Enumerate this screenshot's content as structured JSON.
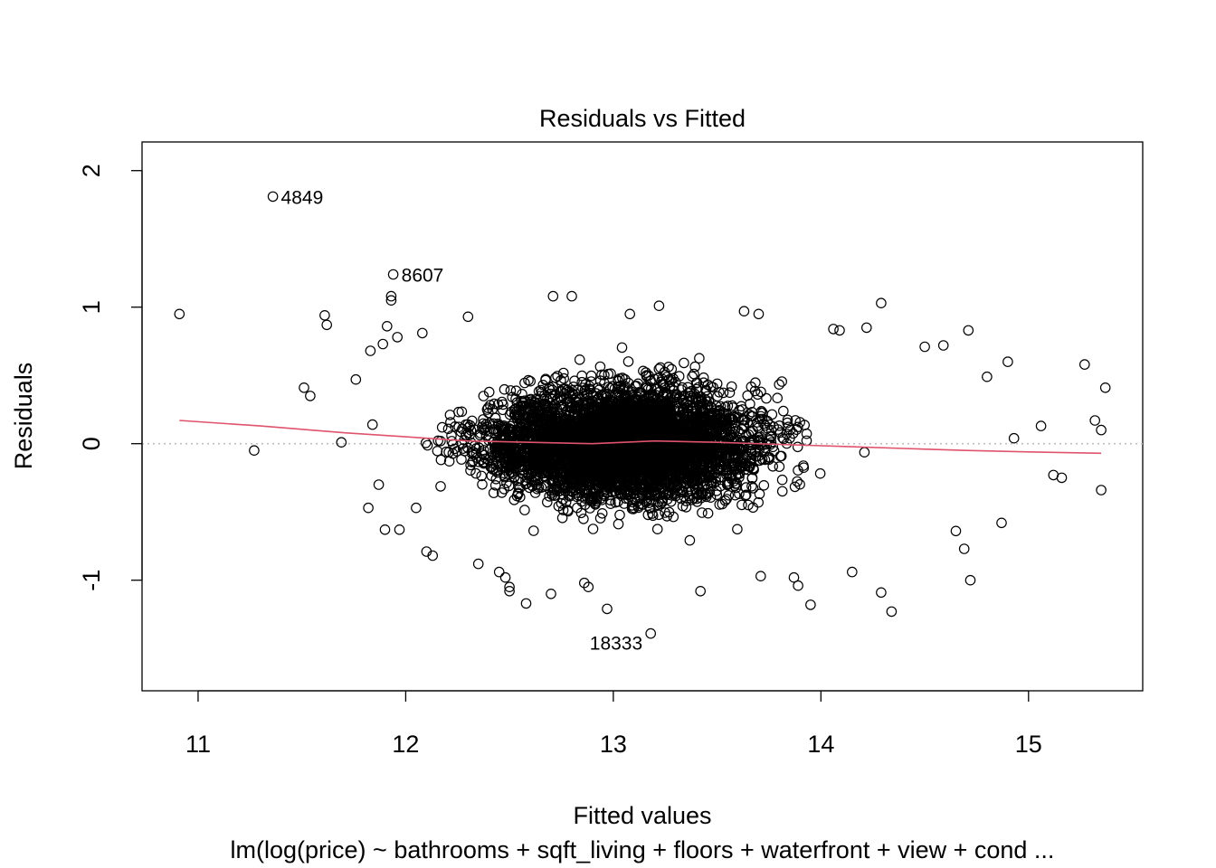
{
  "chart_data": {
    "type": "scatter",
    "title": "Residuals vs Fitted",
    "xlabel": "Fitted values",
    "ylabel": "Residuals",
    "subtitle": "lm(log(price) ~ bathrooms + sqft_living + floors + waterfront + view + cond ...",
    "xlim": [
      10.73,
      15.55
    ],
    "ylim": [
      -1.81,
      2.21
    ],
    "xticks": [
      11,
      12,
      13,
      14,
      15
    ],
    "yticks": [
      -1,
      0,
      1,
      2
    ],
    "x_tick_labels": [
      "11",
      "12",
      "13",
      "14",
      "15"
    ],
    "y_tick_labels": [
      "-1",
      "0",
      "1",
      "2"
    ],
    "reference_line": {
      "y": 0,
      "style": "dotted",
      "color": "#bebebe"
    },
    "smoother": {
      "color": "#df536b",
      "x": [
        10.91,
        11.3,
        11.7,
        12.0,
        12.3,
        12.6,
        12.9,
        13.2,
        13.5,
        13.8,
        14.1,
        14.4,
        14.7,
        15.0,
        15.35
      ],
      "y": [
        0.17,
        0.13,
        0.08,
        0.05,
        0.02,
        0.01,
        0.0,
        0.02,
        0.01,
        -0.005,
        -0.02,
        -0.035,
        -0.05,
        -0.06,
        -0.07
      ]
    },
    "cloud": {
      "description_free": true,
      "x_center": 13.05,
      "x_spread": 0.55,
      "y_spread": 0.28,
      "n_dense": 5200,
      "seed": 7
    },
    "points": [
      {
        "x": 10.91,
        "y": 0.95
      },
      {
        "x": 11.27,
        "y": -0.05
      },
      {
        "x": 11.51,
        "y": 0.41
      },
      {
        "x": 11.54,
        "y": 0.35
      },
      {
        "x": 11.61,
        "y": 0.94
      },
      {
        "x": 11.62,
        "y": 0.87
      },
      {
        "x": 11.69,
        "y": 0.01
      },
      {
        "x": 11.76,
        "y": 0.47
      },
      {
        "x": 11.82,
        "y": -0.47
      },
      {
        "x": 11.83,
        "y": 0.68
      },
      {
        "x": 11.84,
        "y": 0.14
      },
      {
        "x": 11.87,
        "y": -0.3
      },
      {
        "x": 11.89,
        "y": 0.73
      },
      {
        "x": 11.9,
        "y": -0.63
      },
      {
        "x": 11.91,
        "y": 0.86
      },
      {
        "x": 11.93,
        "y": 1.05
      },
      {
        "x": 11.93,
        "y": 1.08
      },
      {
        "x": 11.96,
        "y": 0.78
      },
      {
        "x": 11.97,
        "y": -0.63
      },
      {
        "x": 12.05,
        "y": -0.47
      },
      {
        "x": 12.08,
        "y": 0.81
      },
      {
        "x": 12.1,
        "y": -0.79
      },
      {
        "x": 12.13,
        "y": -0.82
      },
      {
        "x": 12.3,
        "y": 0.93
      },
      {
        "x": 12.35,
        "y": -0.88
      },
      {
        "x": 12.45,
        "y": -0.94
      },
      {
        "x": 12.48,
        "y": -0.98
      },
      {
        "x": 12.5,
        "y": -1.05
      },
      {
        "x": 12.5,
        "y": -1.08
      },
      {
        "x": 12.58,
        "y": -1.17
      },
      {
        "x": 12.7,
        "y": -1.1
      },
      {
        "x": 12.71,
        "y": 1.08
      },
      {
        "x": 12.8,
        "y": 1.08
      },
      {
        "x": 12.86,
        "y": -1.02
      },
      {
        "x": 12.88,
        "y": -1.05
      },
      {
        "x": 12.97,
        "y": -1.21
      },
      {
        "x": 13.08,
        "y": 0.95
      },
      {
        "x": 13.22,
        "y": 1.01
      },
      {
        "x": 13.42,
        "y": -1.08
      },
      {
        "x": 13.63,
        "y": 0.97
      },
      {
        "x": 13.7,
        "y": 0.95
      },
      {
        "x": 13.71,
        "y": -0.97
      },
      {
        "x": 13.87,
        "y": -0.98
      },
      {
        "x": 13.89,
        "y": -1.04
      },
      {
        "x": 13.95,
        "y": -1.18
      },
      {
        "x": 14.06,
        "y": 0.84
      },
      {
        "x": 14.09,
        "y": 0.83
      },
      {
        "x": 14.15,
        "y": -0.94
      },
      {
        "x": 14.22,
        "y": 0.85
      },
      {
        "x": 14.29,
        "y": 1.03
      },
      {
        "x": 14.29,
        "y": -1.09
      },
      {
        "x": 14.34,
        "y": -1.23
      },
      {
        "x": 14.5,
        "y": 0.71
      },
      {
        "x": 14.59,
        "y": 0.72
      },
      {
        "x": 14.65,
        "y": -0.64
      },
      {
        "x": 14.69,
        "y": -0.77
      },
      {
        "x": 14.71,
        "y": 0.83
      },
      {
        "x": 14.72,
        "y": -1.0
      },
      {
        "x": 14.8,
        "y": 0.49
      },
      {
        "x": 14.87,
        "y": -0.58
      },
      {
        "x": 14.9,
        "y": 0.6
      },
      {
        "x": 14.93,
        "y": 0.04
      },
      {
        "x": 15.06,
        "y": 0.13
      },
      {
        "x": 15.12,
        "y": -0.23
      },
      {
        "x": 15.16,
        "y": -0.25
      },
      {
        "x": 15.27,
        "y": 0.58
      },
      {
        "x": 15.32,
        "y": 0.17
      },
      {
        "x": 15.35,
        "y": 0.1
      },
      {
        "x": 15.35,
        "y": -0.34
      },
      {
        "x": 15.37,
        "y": 0.41
      }
    ],
    "labeled_points": [
      {
        "x": 11.36,
        "y": 1.81,
        "label": "4849",
        "side": "right"
      },
      {
        "x": 11.94,
        "y": 1.24,
        "label": "8607",
        "side": "right"
      },
      {
        "x": 13.18,
        "y": -1.39,
        "label": "18333",
        "side": "left"
      }
    ]
  }
}
